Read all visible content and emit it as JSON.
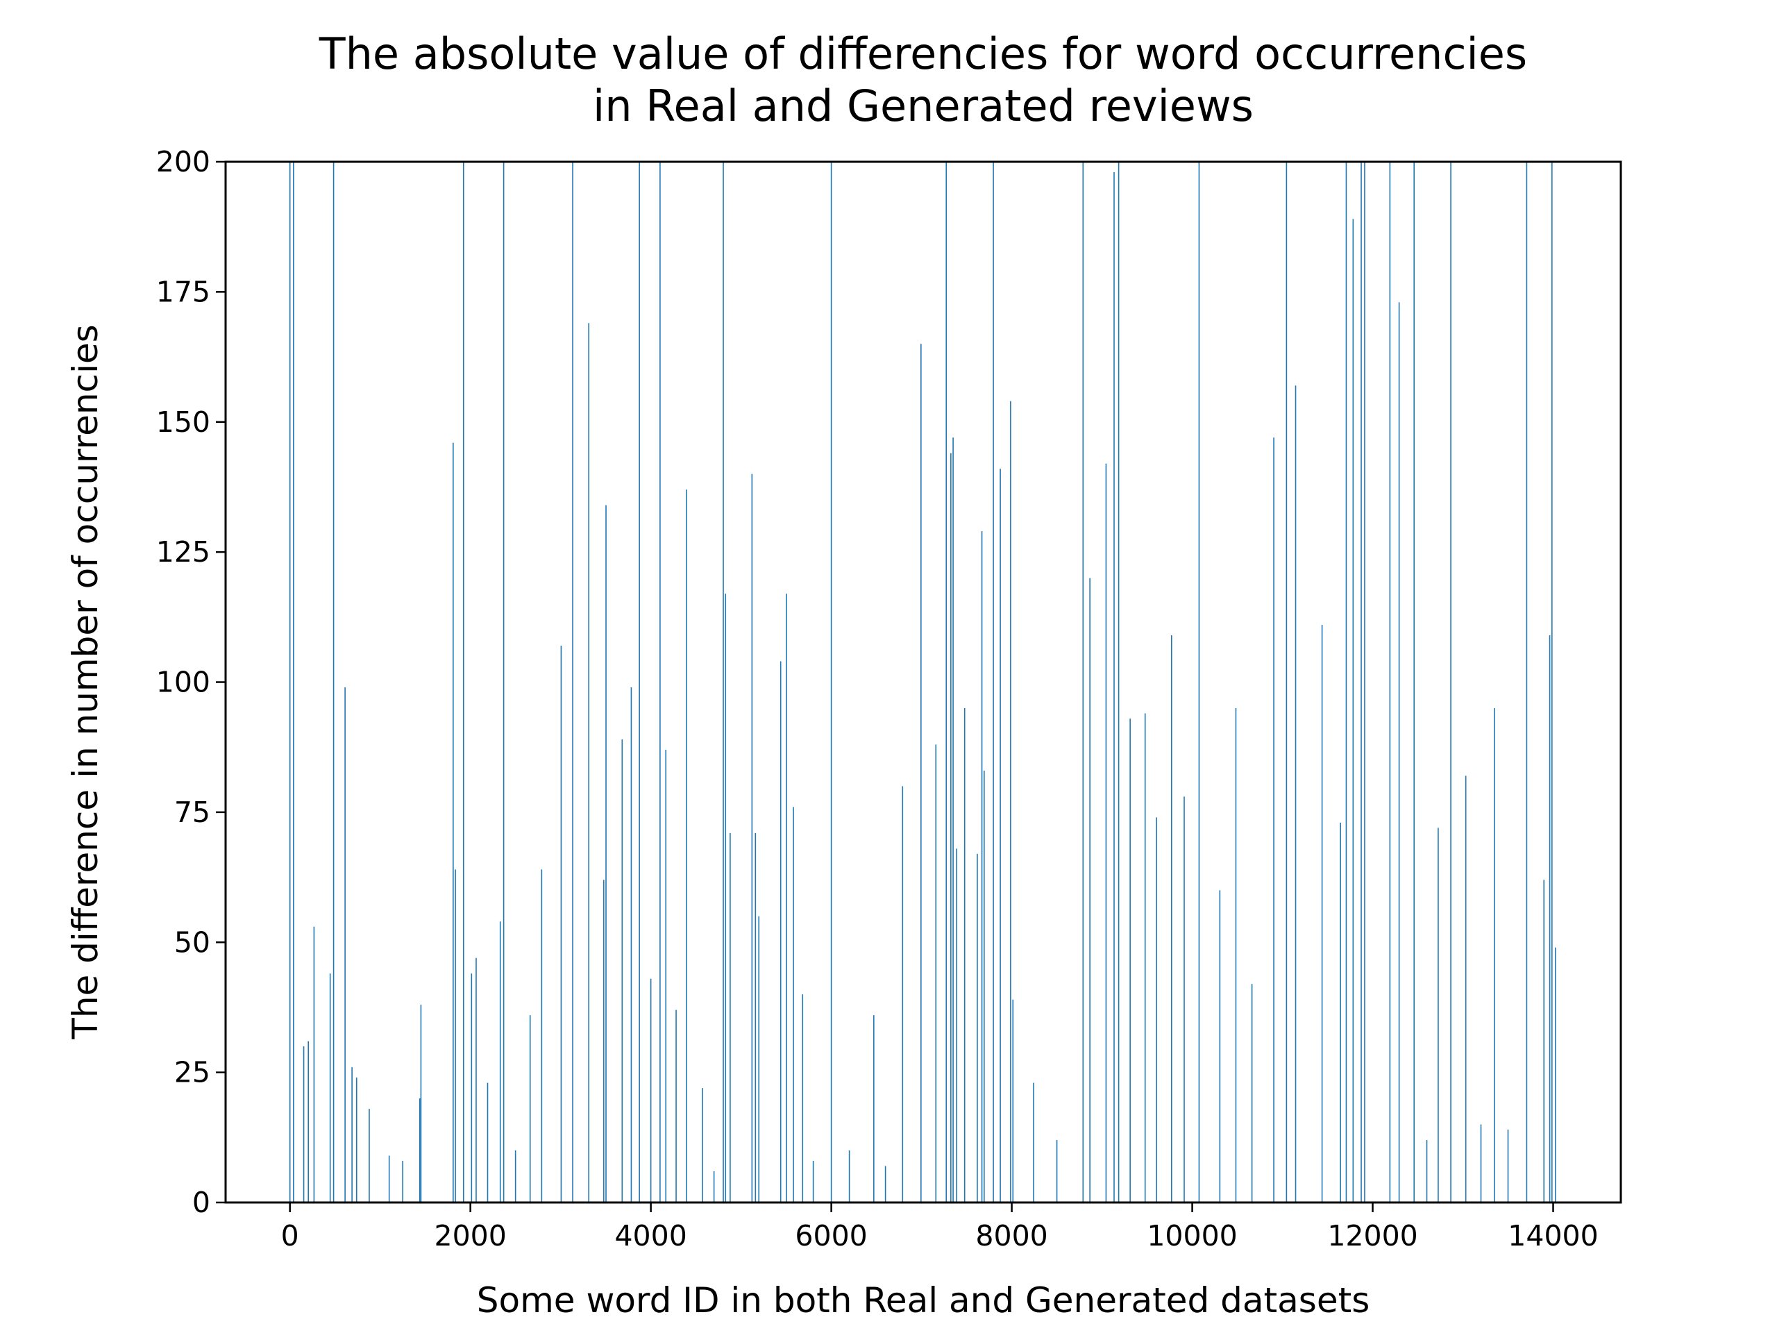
{
  "chart_data": {
    "type": "bar",
    "title": [
      "The absolute value of differencies for word occurrencies",
      "in Real and Generated reviews"
    ],
    "x_label": "Some word ID in both Real and Generated datasets",
    "y_label": "The difference in number of occurrencies",
    "color": "#1f77b4",
    "x": [
      0,
      40,
      153,
      204,
      267,
      446,
      484,
      611,
      688,
      739,
      879,
      1100,
      1250,
      1439,
      1452,
      1809,
      1834,
      1924,
      2013,
      2064,
      2191,
      2331,
      2369,
      2500,
      2662,
      2790,
      3006,
      3134,
      3312,
      3478,
      3503,
      3682,
      3783,
      3873,
      4000,
      4102,
      4166,
      4280,
      4395,
      4573,
      4700,
      4803,
      4828,
      4879,
      5121,
      5159,
      5197,
      5439,
      5503,
      5580,
      5682,
      5800,
      6000,
      6200,
      6471,
      6600,
      6790,
      6994,
      7159,
      7274,
      7325,
      7350,
      7389,
      7478,
      7618,
      7669,
      7694,
      7796,
      7873,
      7987,
      8013,
      8242,
      8500,
      8790,
      8866,
      9045,
      9134,
      9185,
      9312,
      9478,
      9605,
      9771,
      9911,
      10076,
      10306,
      10484,
      10662,
      10904,
      11045,
      11146,
      11439,
      11643,
      11707,
      11783,
      11873,
      11911,
      12191,
      12293,
      12459,
      12600,
      12726,
      12866,
      13032,
      13200,
      13350,
      13500,
      13707,
      13898,
      13962,
      13987,
      14025
    ],
    "values": [
      200,
      200,
      30,
      31,
      53,
      44,
      200,
      99,
      26,
      24,
      18,
      9,
      8,
      20,
      38,
      146,
      64,
      200,
      44,
      47,
      23,
      54,
      200,
      10,
      36,
      64,
      107,
      200,
      169,
      62,
      134,
      89,
      99,
      200,
      43,
      200,
      87,
      37,
      137,
      22,
      6,
      200,
      117,
      71,
      140,
      71,
      55,
      104,
      117,
      76,
      40,
      8,
      200,
      10,
      36,
      7,
      80,
      165,
      88,
      200,
      144,
      147,
      68,
      95,
      67,
      129,
      83,
      200,
      141,
      154,
      39,
      23,
      12,
      200,
      120,
      142,
      198,
      200,
      93,
      94,
      74,
      109,
      78,
      200,
      60,
      95,
      42,
      147,
      200,
      157,
      111,
      73,
      200,
      189,
      200,
      200,
      200,
      173,
      200,
      12,
      72,
      200,
      82,
      15,
      95,
      14,
      200,
      62,
      109,
      200,
      49
    ],
    "xlim": [
      -713,
      14750
    ],
    "ylim": [
      0,
      200
    ],
    "xticks": [
      0,
      2000,
      4000,
      6000,
      8000,
      10000,
      12000,
      14000
    ],
    "yticks": [
      0,
      25,
      50,
      75,
      100,
      125,
      150,
      175,
      200
    ]
  }
}
